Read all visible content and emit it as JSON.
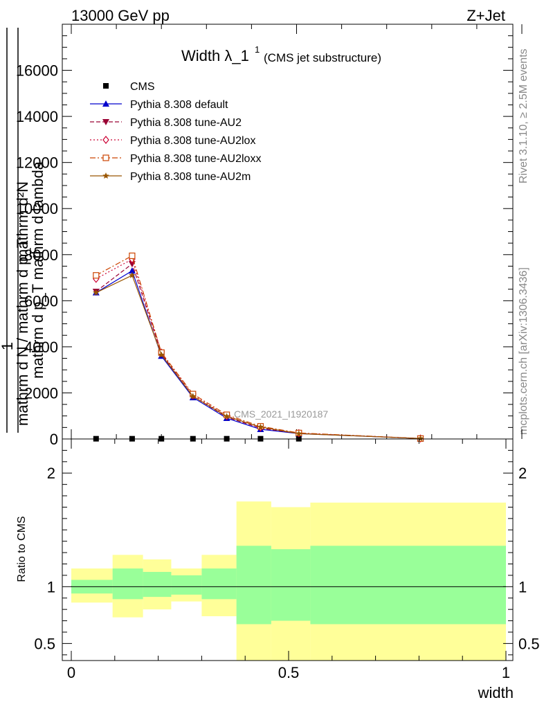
{
  "header": {
    "left": "13000 GeV pp",
    "right": "Z+Jet"
  },
  "side_labels": {
    "rivet": "Rivet 3.1.10, ≥ 2.5M events",
    "mcplots": "mcplots.cern.ch [arXiv:1306.3436]"
  },
  "watermark": "CMS_2021_I1920187",
  "chart_data": [
    {
      "type": "line",
      "title_main": "Width λ_1",
      "title_sup": "1",
      "title_sub": "(CMS jet substructure)",
      "ylabel_num_1": "mathrm d²N",
      "ylabel_num_2": "mathrm d p_T mathrm d lambda",
      "ylabel_one": "1",
      "ylabel_den_1": "mathrm d N / mathrm d p_T",
      "ylabel_den_2": "mathrm d N / mathrm d p_T",
      "xlim": [
        0,
        1
      ],
      "ylim": [
        0,
        18000
      ],
      "y_ticks": [
        0,
        2000,
        4000,
        6000,
        8000,
        10000,
        12000,
        14000,
        16000
      ],
      "y_tick_labels": [
        "0",
        "2000",
        "4000",
        "6000",
        "8000",
        "10000",
        "12000",
        "14000",
        "16000"
      ],
      "legend_position": "top-left",
      "x": [
        0.055,
        0.135,
        0.2,
        0.27,
        0.345,
        0.42,
        0.505,
        0.775
      ],
      "cms": [
        10,
        10,
        10,
        10,
        10,
        10,
        10,
        10
      ],
      "series": [
        {
          "name": "CMS",
          "color": "#000000",
          "marker": "square-filled",
          "dash": "none",
          "values": [
            10,
            10,
            10,
            10,
            10,
            10,
            10,
            10
          ]
        },
        {
          "name": "Pythia 8.308 default",
          "color": "#0000cc",
          "marker": "triangle-up",
          "dash": "none",
          "values": [
            6350,
            7300,
            3600,
            1800,
            900,
            420,
            230,
            20
          ]
        },
        {
          "name": "Pythia 8.308 tune-AU2",
          "color": "#990033",
          "marker": "triangle-down",
          "dash": "6,3",
          "values": [
            6400,
            7600,
            3700,
            1850,
            950,
            470,
            240,
            20
          ]
        },
        {
          "name": "Pythia 8.308 tune-AU2lox",
          "color": "#cc0033",
          "marker": "diamond-open",
          "dash": "2,3",
          "values": [
            6950,
            7800,
            3750,
            1900,
            1000,
            500,
            250,
            20
          ]
        },
        {
          "name": "Pythia 8.308 tune-AU2loxx",
          "color": "#cc4400",
          "marker": "square-open",
          "dash": "8,3,2,3",
          "values": [
            7100,
            7950,
            3750,
            1950,
            1050,
            550,
            260,
            20
          ]
        },
        {
          "name": "Pythia 8.308 tune-AU2m",
          "color": "#995500",
          "marker": "star",
          "dash": "none",
          "values": [
            6350,
            7100,
            3650,
            1850,
            980,
            520,
            230,
            20
          ]
        }
      ]
    },
    {
      "type": "area",
      "ylabel": "Ratio to CMS",
      "xlim": [
        0,
        1
      ],
      "ylim": [
        0.35,
        2.3
      ],
      "x_ticks": [
        0,
        0.5,
        1
      ],
      "x_tick_labels": [
        "0",
        "0.5",
        "1"
      ],
      "y_ticks": [
        0.5,
        1,
        2
      ],
      "y_tick_labels": [
        "0.5",
        "1",
        "2"
      ],
      "xlabel": "width",
      "reference_line": 1,
      "bins": [
        {
          "x0": 0.0,
          "x1": 0.095,
          "inner_lo": 0.94,
          "inner_hi": 1.06,
          "outer_lo": 0.86,
          "outer_hi": 1.16
        },
        {
          "x0": 0.095,
          "x1": 0.165,
          "inner_lo": 0.89,
          "inner_hi": 1.16,
          "outer_lo": 0.73,
          "outer_hi": 1.28
        },
        {
          "x0": 0.165,
          "x1": 0.23,
          "inner_lo": 0.91,
          "inner_hi": 1.13,
          "outer_lo": 0.8,
          "outer_hi": 1.24
        },
        {
          "x0": 0.23,
          "x1": 0.3,
          "inner_lo": 0.93,
          "inner_hi": 1.1,
          "outer_lo": 0.87,
          "outer_hi": 1.16
        },
        {
          "x0": 0.3,
          "x1": 0.38,
          "inner_lo": 0.89,
          "inner_hi": 1.16,
          "outer_lo": 0.74,
          "outer_hi": 1.28
        },
        {
          "x0": 0.38,
          "x1": 0.46,
          "inner_lo": 0.67,
          "inner_hi": 1.36,
          "outer_lo": 0.35,
          "outer_hi": 1.75
        },
        {
          "x0": 0.46,
          "x1": 0.55,
          "inner_lo": 0.7,
          "inner_hi": 1.33,
          "outer_lo": 0.35,
          "outer_hi": 1.7
        },
        {
          "x0": 0.55,
          "x1": 1.0,
          "inner_lo": 0.67,
          "inner_hi": 1.36,
          "outer_lo": 0.35,
          "outer_hi": 1.74
        }
      ],
      "colors": {
        "inner": "#99ff99",
        "outer": "#ffff99"
      }
    }
  ]
}
